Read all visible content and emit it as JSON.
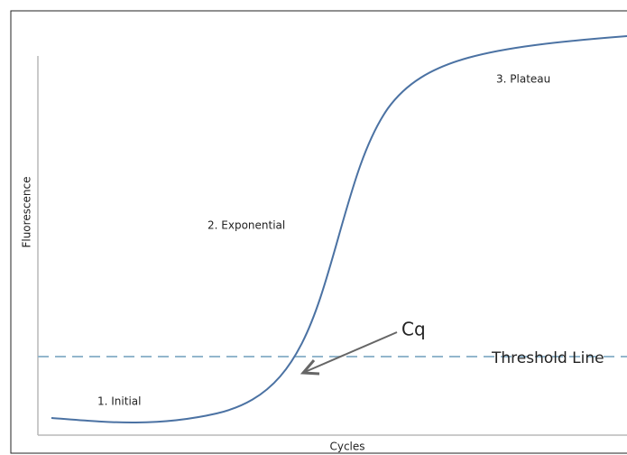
{
  "axes": {
    "y_label": "Fluorescence",
    "x_label": "Cycles"
  },
  "phases": [
    "1.  Initial",
    "2.  Exponential",
    "3.  Plateau"
  ],
  "annotations": {
    "cq": "Cq",
    "threshold": "Threshold Line"
  }
}
